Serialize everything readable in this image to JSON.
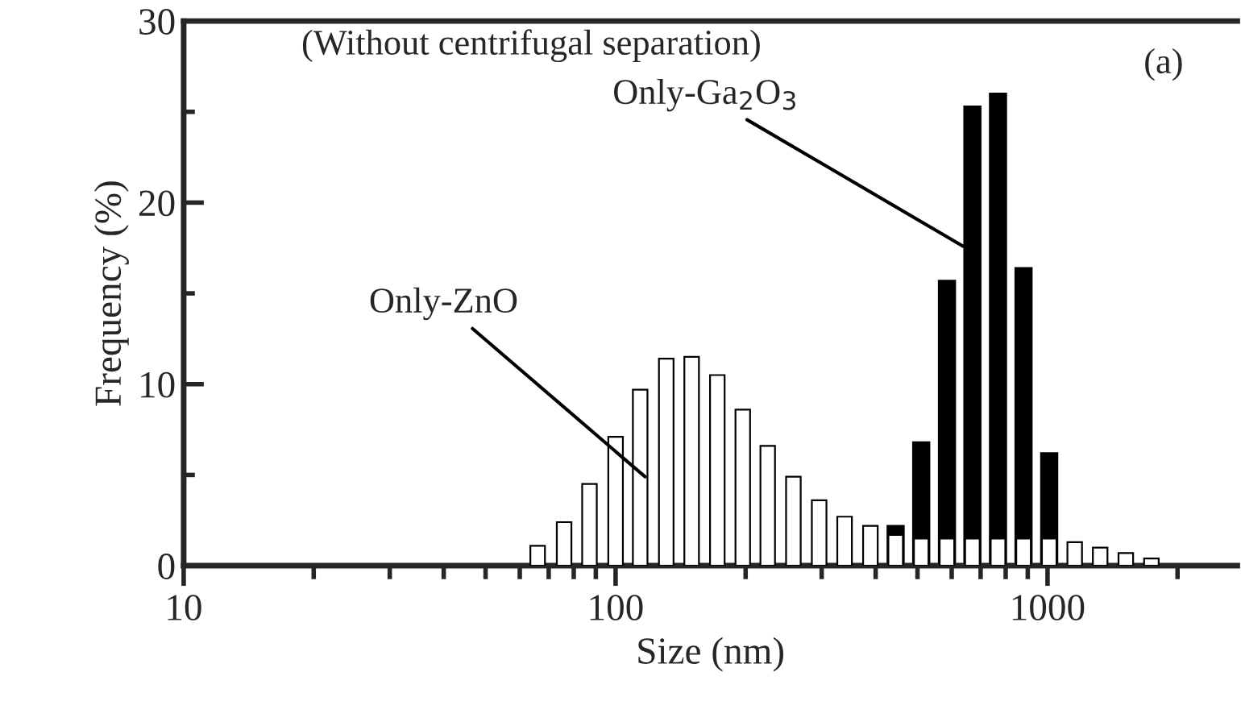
{
  "chart_data": {
    "type": "bar",
    "title": "(Without centrifugal separation)",
    "xlabel": "Size (nm)",
    "ylabel": "Frequency (%)",
    "x": [
      66,
      76,
      87,
      100,
      114,
      131,
      150,
      172,
      197,
      225,
      258,
      296,
      339,
      389,
      445,
      510,
      585,
      670,
      768,
      880,
      1009,
      1156,
      1324,
      1518,
      1740
    ],
    "series": [
      {
        "color": "#000000",
        "values": [
          null,
          null,
          null,
          null,
          null,
          null,
          null,
          null,
          null,
          null,
          null,
          null,
          null,
          null,
          2.2,
          6.8,
          15.7,
          25.3,
          26.0,
          16.4,
          6.2,
          null,
          null,
          null,
          null
        ]
      },
      {
        "color": "#ffffff",
        "values": [
          1.1,
          2.4,
          4.5,
          7.1,
          9.7,
          11.4,
          11.5,
          10.5,
          8.6,
          6.6,
          4.9,
          3.6,
          2.7,
          2.2,
          1.7,
          1.5,
          1.5,
          1.5,
          1.5,
          1.5,
          1.5,
          1.3,
          1.0,
          0.7,
          0.4
        ]
      }
    ],
    "annotations": [
      {
        "text": "Only-ZnO",
        "x": 117,
        "y": 4.9
      },
      {
        "text": "Only-Ga$_{2}$O$_{3}$",
        "x": 637,
        "y": 17.6
      },
      "(a)"
    ],
    "log": "x",
    "xlim": [
      10,
      2750
    ],
    "xticks": [
      10,
      100,
      1000
    ],
    "ylim": [
      0,
      30
    ],
    "yticks": [
      0,
      {
        "value": 5,
        "label": null
      },
      10,
      {
        "value": 15,
        "label": null
      },
      20,
      {
        "value": 25,
        "label": null
      },
      30
    ],
    "grid": false,
    "legend": false
  }
}
